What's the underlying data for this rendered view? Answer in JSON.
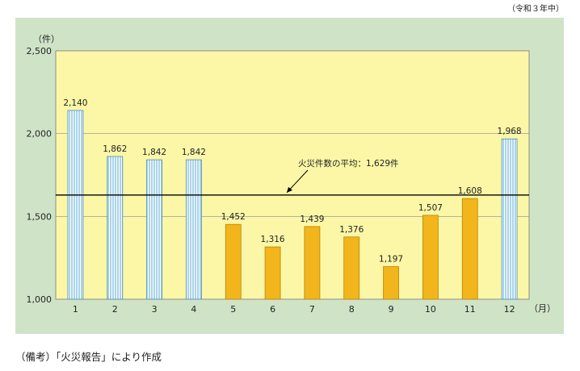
{
  "header": {
    "period": "（令和３年中）"
  },
  "footer": {
    "note": "（備考）「火災報告」により作成"
  },
  "chart_data": {
    "type": "bar",
    "title": "",
    "ylabel": "（件）",
    "xlabel": "（月）",
    "ylim": [
      1000,
      2500
    ],
    "yticks": [
      1000,
      1500,
      2000,
      2500
    ],
    "ytick_labels": [
      "1,000",
      "1,500",
      "2,000",
      "2,500"
    ],
    "categories": [
      "1",
      "2",
      "3",
      "4",
      "5",
      "6",
      "7",
      "8",
      "9",
      "10",
      "11",
      "12"
    ],
    "values": [
      2140,
      1862,
      1842,
      1842,
      1452,
      1316,
      1439,
      1376,
      1197,
      1507,
      1608,
      1968
    ],
    "value_labels": [
      "2,140",
      "1,862",
      "1,842",
      "1,842",
      "1,452",
      "1,316",
      "1,439",
      "1,376",
      "1,197",
      "1,507",
      "1,608",
      "1,968"
    ],
    "average": {
      "value": 1629,
      "label": "火災件数の平均：1,629件"
    },
    "colors": {
      "above_average": "#a9d3ea",
      "above_average_stripe": "#ffffff",
      "below_average": "#f2b51b",
      "plot_background": "#fbf7a6",
      "panel_background": "#cfe4c7",
      "gridline": "#8c8c8c"
    },
    "grid": true
  }
}
